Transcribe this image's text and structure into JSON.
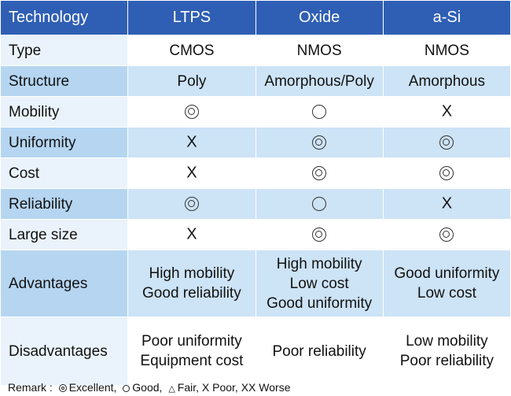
{
  "header": {
    "c0": "Technology",
    "c1": "LTPS",
    "c2": "Oxide",
    "c3": "a-Si"
  },
  "rows": [
    {
      "label": "Type",
      "c1": "CMOS",
      "c2": "NMOS",
      "c3": "NMOS"
    },
    {
      "label": "Structure",
      "c1": "Poly",
      "c2": "Amorphous/Poly",
      "c3": "Amorphous"
    },
    {
      "label": "Mobility",
      "c1": "◎",
      "c2": "○",
      "c3": "X"
    },
    {
      "label": "Uniformity",
      "c1": "X",
      "c2": "◎",
      "c3": "◎"
    },
    {
      "label": "Cost",
      "c1": "X",
      "c2": "◎",
      "c3": "◎"
    },
    {
      "label": "Reliability",
      "c1": "◎",
      "c2": "○",
      "c3": "X"
    },
    {
      "label": "Large size",
      "c1": "X",
      "c2": "◎",
      "c3": "◎"
    },
    {
      "label": "Advantages",
      "c1": [
        "High mobility",
        "Good reliability"
      ],
      "c2": [
        "High mobility",
        "Low cost",
        "Good uniformity"
      ],
      "c3": [
        "Good uniformity",
        "Low cost"
      ]
    },
    {
      "label": "Disadvantages",
      "c1": [
        "Poor uniformity",
        "Equipment cost"
      ],
      "c2": [
        "Poor reliability"
      ],
      "c3": [
        "Low mobility",
        "Poor reliability"
      ]
    }
  ],
  "remark": {
    "prefix": "Remark :",
    "excellent": "Excellent,",
    "good": "Good,",
    "fair": "Fair,",
    "poor": "X Poor,",
    "worse": "XX Worse"
  },
  "colors": {
    "header": "#2f5fb4",
    "band": "#cde3f6",
    "band_label": "#b5d5f1",
    "label_light": "#eaf3fb"
  }
}
